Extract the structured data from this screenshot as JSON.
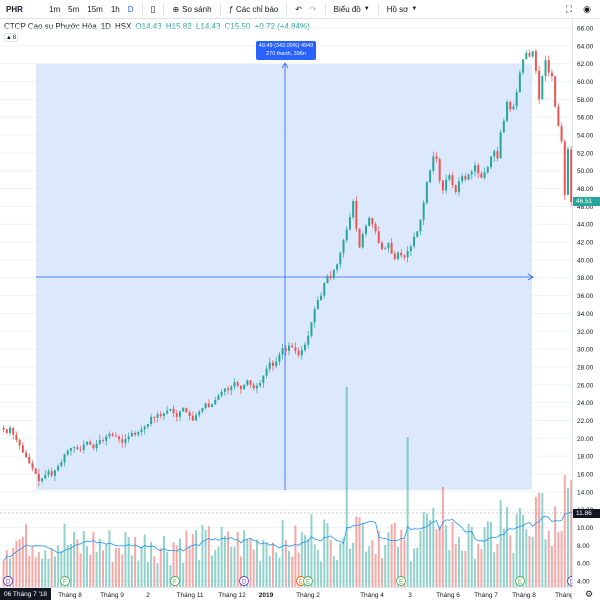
{
  "toolbar": {
    "symbol": "PHR",
    "intervals": [
      "1m",
      "5m",
      "15m",
      "1h",
      "D"
    ],
    "active_interval": "D",
    "compare_label": "So sánh",
    "indicators_label": "Các chỉ báo",
    "chart_type_label": "Biểu đồ",
    "profile_label": "Hồ sơ"
  },
  "legend": {
    "name": "CTCP Cao su Phước Hòa",
    "interval": "1D",
    "exchange": "HSX",
    "open": "O14.43",
    "high": "H15.82",
    "low": "L14.43",
    "close": "C15.50",
    "change": "+0.72 (+4.84%)",
    "collapse_count": "8"
  },
  "measure": {
    "line1": "49.49 (343.00%) 4949",
    "line2": "270 thanh, 396n"
  },
  "price_axis": {
    "labels": [
      "66.00",
      "64.00",
      "62.00",
      "60.00",
      "58.00",
      "56.00",
      "54.00",
      "52.00",
      "50.00",
      "48.00",
      "46.00",
      "44.00",
      "42.00",
      "40.00",
      "38.00",
      "36.00",
      "34.00",
      "32.00",
      "30.00",
      "28.00",
      "26.00",
      "24.00",
      "22.00",
      "20.00",
      "18.00",
      "16.00",
      "14.00",
      "12.00",
      "10.00",
      "8.00",
      "6.00",
      "4.00"
    ],
    "last_price": "46.51",
    "crosshair_value": "11.86"
  },
  "time_axis": {
    "labels": [
      "Tháng 8",
      "Tháng 9",
      "2",
      "Tháng 11",
      "Tháng 12",
      "2019",
      "Tháng 2",
      "Tháng 4",
      "3",
      "Tháng 6",
      "Tháng 7",
      "Tháng 8",
      "Tháng 9"
    ],
    "crosshair_date": "06 Tháng 7 '18"
  },
  "colors": {
    "up": "#26a69a",
    "down": "#ef5350",
    "measure_fill": "#d6e4fb",
    "measure_line": "#2962ff",
    "ma_line": "#2196f3"
  },
  "chart_data": {
    "type": "candlestick",
    "price_range": [
      4,
      66
    ],
    "closes": [
      21.0,
      20.6,
      21.2,
      20.4,
      19.8,
      19.2,
      18.4,
      17.9,
      17.2,
      16.6,
      16.0,
      15.2,
      15.5,
      15.9,
      16.3,
      15.8,
      16.4,
      16.9,
      17.3,
      18.2,
      18.6,
      18.9,
      19.0,
      18.8,
      18.7,
      19.3,
      19.6,
      19.3,
      18.9,
      19.4,
      19.8,
      19.7,
      20.2,
      20.5,
      20.3,
      20.2,
      19.9,
      19.5,
      19.9,
      20.2,
      20.6,
      20.4,
      20.7,
      21.0,
      21.3,
      21.6,
      22.4,
      22.3,
      22.7,
      22.5,
      22.8,
      23.1,
      23.3,
      22.8,
      22.4,
      23.0,
      23.4,
      22.9,
      22.5,
      22.0,
      22.6,
      23.0,
      23.4,
      23.9,
      23.5,
      23.8,
      24.3,
      24.8,
      25.2,
      25.6,
      25.4,
      25.8,
      26.3,
      25.9,
      25.5,
      26.0,
      26.5,
      26.0,
      25.6,
      25.9,
      26.2,
      27.0,
      27.8,
      28.5,
      28.1,
      28.6,
      29.4,
      30.1,
      29.8,
      30.4,
      30.2,
      29.8,
      29.3,
      29.9,
      30.5,
      31.5,
      33.0,
      34.5,
      35.5,
      36.0,
      37.4,
      38.2,
      38.0,
      38.9,
      39.5,
      40.8,
      42.2,
      43.4,
      44.8,
      46.6,
      43.5,
      41.4,
      42.9,
      43.8,
      44.7,
      44.0,
      43.2,
      41.9,
      41.2,
      41.3,
      41.9,
      40.7,
      40.1,
      40.8,
      40.5,
      40.3,
      41.0,
      41.5,
      42.6,
      43.2,
      44.5,
      46.4,
      48.7,
      50.0,
      51.6,
      51.3,
      48.9,
      47.8,
      49.0,
      49.5,
      48.4,
      47.6,
      48.8,
      49.4,
      49.0,
      49.6,
      49.9,
      50.6,
      49.7,
      49.2,
      49.8,
      50.4,
      51.6,
      52.2,
      51.4,
      54.3,
      55.6,
      57.7,
      56.9,
      57.2,
      58.8,
      61.0,
      62.5,
      63.2,
      62.8,
      63.4,
      61.2,
      58.0,
      60.6,
      62.4,
      61.0,
      60.6,
      57.2,
      55.0,
      53.3,
      47.3,
      52.4,
      46.5,
      44.5
    ]
  }
}
